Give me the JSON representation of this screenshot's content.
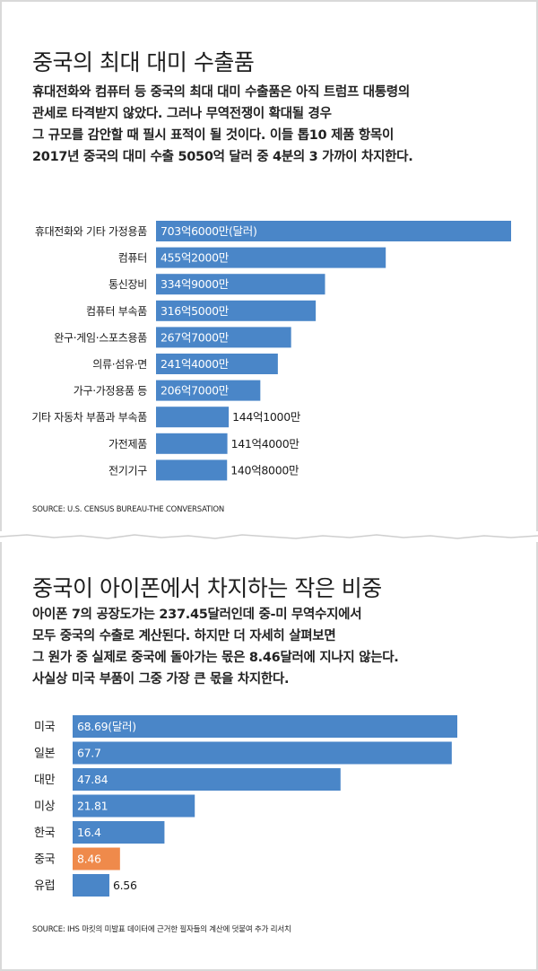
{
  "panel1": {
    "title": "중국의 최대 대미 수출품",
    "intro": [
      "휴대전화와 컴퓨터 등 중국의 최대 대미 수출품은 아직 트럼프 대통령의",
      "관세로 타격받지 않았다. 그러나 무역전쟁이 확대될 경우",
      "그 규모를 감안할 때 필시 표적이 될 것이다. 이들 톱10 제품 항목이",
      "2017년 중국의 대미 수출 5050억 달러 중 4분의 3 가까이 차지한다."
    ],
    "source": "SOURCE: U.S. CENSUS BUREAU-THE CONVERSATION"
  },
  "panel2": {
    "title": "중국이 아이폰에서 차지하는 작은 비중",
    "intro": [
      "아이폰 7의 공장도가는 237.45달러인데 중-미 무역수지에서",
      "모두 중국의 수출로 계산된다. 하지만 더 자세히 살펴보면",
      "그 원가 중 실제로 중국에 돌아가는 몫은 8.46달러에 지나지 않는다.",
      "사실상 미국 부품이 그중 가장 큰 몫을 차지한다."
    ],
    "source": "SOURCE: IHS 마킷의 미발표 데이터에 근거한 필자들의 계산에 덧붙여 추가 리서치"
  },
  "colors": {
    "bar": "#4a86c8",
    "highlight": "#ef8a4b",
    "bar_text": "#ffffff",
    "outside_text": "#1a1a1a"
  },
  "chart_data": [
    {
      "type": "bar",
      "orientation": "horizontal",
      "title": "중국의 최대 대미 수출품",
      "categories": [
        "휴대전화와 기타 가정용품",
        "컴퓨터",
        "통신장비",
        "컴퓨터 부속품",
        "완구·게임·스포츠용품",
        "의류·섬유·면",
        "가구·가정용품 등",
        "기타 자동차 부품과 부속품",
        "가전제품",
        "전기기구"
      ],
      "values": [
        70360,
        45520,
        33490,
        31650,
        26770,
        24140,
        20670,
        14410,
        14140,
        14080
      ],
      "value_labels": [
        "703억6000만(달러)",
        "455억2000만",
        "334억9000만",
        "316억5000만",
        "267억7000만",
        "241억4000만",
        "206억7000만",
        "144억1000만",
        "141억4000만",
        "140억8000만"
      ],
      "unit": "만 달러",
      "xlim": [
        0,
        70360
      ]
    },
    {
      "type": "bar",
      "orientation": "horizontal",
      "title": "중국이 아이폰에서 차지하는 작은 비중",
      "categories": [
        "미국",
        "일본",
        "대만",
        "미상",
        "한국",
        "중국",
        "유럽"
      ],
      "values": [
        68.69,
        67.7,
        47.84,
        21.81,
        16.4,
        8.46,
        6.56
      ],
      "value_labels": [
        "68.69(달러)",
        "67.7",
        "47.84",
        "21.81",
        "16.4",
        "8.46",
        "6.56"
      ],
      "highlight": "중국",
      "unit": "달러",
      "xlim": [
        0,
        68.69
      ]
    }
  ]
}
